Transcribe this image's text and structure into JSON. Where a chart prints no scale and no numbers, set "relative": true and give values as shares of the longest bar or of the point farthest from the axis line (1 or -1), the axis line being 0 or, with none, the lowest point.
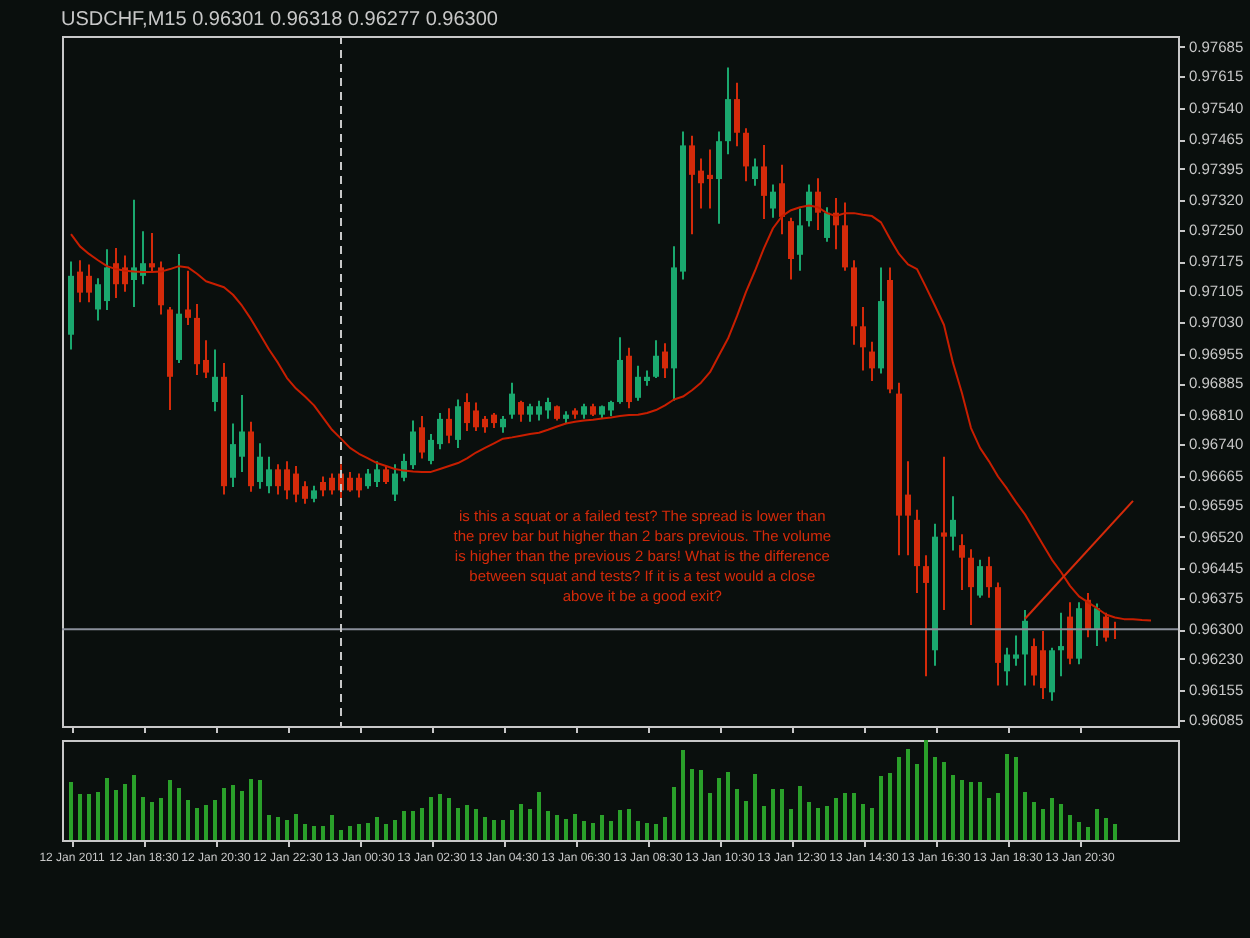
{
  "chart_data": [
    {
      "type": "candlestick",
      "title": "USDCHF,M15 0.96301 0.96318 0.96277 0.96300",
      "x": [
        "2011-01-12T16:30",
        "2011-01-12T16:45",
        "2011-01-12T17:00",
        "2011-01-12T17:15",
        "2011-01-12T17:30",
        "2011-01-12T17:45",
        "2011-01-12T18:00",
        "2011-01-12T18:15",
        "2011-01-12T18:30",
        "2011-01-12T18:45",
        "2011-01-12T19:00",
        "2011-01-12T19:15",
        "2011-01-12T19:30",
        "2011-01-12T19:45",
        "2011-01-12T20:00",
        "2011-01-12T20:15",
        "2011-01-12T20:30",
        "2011-01-12T20:45",
        "2011-01-12T21:00",
        "2011-01-12T21:15",
        "2011-01-12T21:30",
        "2011-01-12T21:45",
        "2011-01-12T22:00",
        "2011-01-12T22:15",
        "2011-01-12T22:30",
        "2011-01-12T22:45",
        "2011-01-12T23:00",
        "2011-01-12T23:15",
        "2011-01-12T23:30",
        "2011-01-12T23:45",
        "2011-01-13T00:00",
        "2011-01-13T00:15",
        "2011-01-13T00:30",
        "2011-01-13T00:45",
        "2011-01-13T01:00",
        "2011-01-13T01:15",
        "2011-01-13T01:30",
        "2011-01-13T01:45",
        "2011-01-13T02:00",
        "2011-01-13T02:15",
        "2011-01-13T02:30",
        "2011-01-13T02:45",
        "2011-01-13T03:00",
        "2011-01-13T03:15",
        "2011-01-13T03:30",
        "2011-01-13T03:45",
        "2011-01-13T04:00",
        "2011-01-13T04:15",
        "2011-01-13T04:30",
        "2011-01-13T04:45",
        "2011-01-13T05:00",
        "2011-01-13T05:15",
        "2011-01-13T05:30",
        "2011-01-13T05:45",
        "2011-01-13T06:00",
        "2011-01-13T06:15",
        "2011-01-13T06:30",
        "2011-01-13T06:45",
        "2011-01-13T07:00",
        "2011-01-13T07:15",
        "2011-01-13T07:30",
        "2011-01-13T07:45",
        "2011-01-13T08:00",
        "2011-01-13T08:15",
        "2011-01-13T08:30",
        "2011-01-13T08:45",
        "2011-01-13T09:00",
        "2011-01-13T09:15",
        "2011-01-13T09:30",
        "2011-01-13T09:45",
        "2011-01-13T10:00",
        "2011-01-13T10:15",
        "2011-01-13T10:30",
        "2011-01-13T10:45",
        "2011-01-13T11:00",
        "2011-01-13T11:15",
        "2011-01-13T11:30",
        "2011-01-13T11:45",
        "2011-01-13T12:00",
        "2011-01-13T12:15",
        "2011-01-13T12:30",
        "2011-01-13T12:45",
        "2011-01-13T13:00",
        "2011-01-13T13:15",
        "2011-01-13T13:30",
        "2011-01-13T13:45",
        "2011-01-13T14:00",
        "2011-01-13T14:15",
        "2011-01-13T14:30",
        "2011-01-13T14:45",
        "2011-01-13T15:00",
        "2011-01-13T15:15",
        "2011-01-13T15:30",
        "2011-01-13T15:45",
        "2011-01-13T16:00",
        "2011-01-13T16:15",
        "2011-01-13T16:30",
        "2011-01-13T16:45",
        "2011-01-13T17:00",
        "2011-01-13T17:15",
        "2011-01-13T17:30",
        "2011-01-13T17:45",
        "2011-01-13T18:00",
        "2011-01-13T18:15",
        "2011-01-13T18:30",
        "2011-01-13T18:45",
        "2011-01-13T19:00",
        "2011-01-13T19:15",
        "2011-01-13T19:30",
        "2011-01-13T19:45",
        "2011-01-13T20:00",
        "2011-01-13T20:15",
        "2011-01-13T20:30",
        "2011-01-13T20:45",
        "2011-01-13T21:00",
        "2011-01-13T21:15",
        "2011-01-13T21:30",
        "2011-01-13T21:45",
        "2011-01-13T22:00",
        "2011-01-13T22:15",
        "2011-01-13T22:30"
      ],
      "ohlc": [
        [
          0.97,
          0.97174,
          0.96965,
          0.9714
        ],
        [
          0.9715,
          0.97177,
          0.97077,
          0.971
        ],
        [
          0.9714,
          0.97167,
          0.97077,
          0.971
        ],
        [
          0.9706,
          0.97134,
          0.97034,
          0.9712
        ],
        [
          0.9708,
          0.97203,
          0.97059,
          0.9716
        ],
        [
          0.9717,
          0.97206,
          0.97087,
          0.9712
        ],
        [
          0.9716,
          0.97188,
          0.97102,
          0.9712
        ],
        [
          0.9713,
          0.97321,
          0.97066,
          0.9716
        ],
        [
          0.9714,
          0.97246,
          0.9712,
          0.9717
        ],
        [
          0.9717,
          0.97242,
          0.97149,
          0.9716
        ],
        [
          0.9716,
          0.97174,
          0.97048,
          0.9707
        ],
        [
          0.9706,
          0.97066,
          0.96821,
          0.969
        ],
        [
          0.9694,
          0.97192,
          0.96933,
          0.9705
        ],
        [
          0.9706,
          0.97152,
          0.97023,
          0.9704
        ],
        [
          0.9704,
          0.97073,
          0.96904,
          0.9693
        ],
        [
          0.9694,
          0.96987,
          0.96897,
          0.9691
        ],
        [
          0.9684,
          0.96965,
          0.96818,
          0.969
        ],
        [
          0.969,
          0.96933,
          0.9662,
          0.9664
        ],
        [
          0.9666,
          0.96789,
          0.96638,
          0.9674
        ],
        [
          0.9671,
          0.96857,
          0.96674,
          0.9677
        ],
        [
          0.9677,
          0.96793,
          0.96627,
          0.9664
        ],
        [
          0.9665,
          0.96742,
          0.96634,
          0.9671
        ],
        [
          0.9664,
          0.9671,
          0.96623,
          0.9668
        ],
        [
          0.9668,
          0.96692,
          0.9662,
          0.9664
        ],
        [
          0.9668,
          0.96699,
          0.96609,
          0.9663
        ],
        [
          0.9667,
          0.96688,
          0.96602,
          0.9662
        ],
        [
          0.9664,
          0.96652,
          0.96598,
          0.9661
        ],
        [
          0.9661,
          0.96641,
          0.96602,
          0.9663
        ],
        [
          0.9665,
          0.96663,
          0.96616,
          0.9663
        ],
        [
          0.9666,
          0.9667,
          0.9662,
          0.9663
        ],
        [
          0.9667,
          0.96692,
          0.96609,
          0.9663
        ],
        [
          0.9666,
          0.96674,
          0.96627,
          0.9663
        ],
        [
          0.9666,
          0.9667,
          0.96613,
          0.9663
        ],
        [
          0.9664,
          0.96681,
          0.96634,
          0.9667
        ],
        [
          0.9665,
          0.96699,
          0.96638,
          0.9668
        ],
        [
          0.9668,
          0.96688,
          0.96645,
          0.9665
        ],
        [
          0.9662,
          0.96692,
          0.96605,
          0.9667
        ],
        [
          0.9666,
          0.96717,
          0.96652,
          0.967
        ],
        [
          0.9669,
          0.96796,
          0.96681,
          0.9677
        ],
        [
          0.9678,
          0.96807,
          0.96706,
          0.9672
        ],
        [
          0.967,
          0.96764,
          0.96692,
          0.9675
        ],
        [
          0.9674,
          0.96814,
          0.96728,
          0.968
        ],
        [
          0.968,
          0.96825,
          0.96742,
          0.9676
        ],
        [
          0.9675,
          0.96846,
          0.96731,
          0.9683
        ],
        [
          0.9684,
          0.96861,
          0.96771,
          0.9679
        ],
        [
          0.9682,
          0.96839,
          0.96771,
          0.9678
        ],
        [
          0.968,
          0.96807,
          0.96767,
          0.9678
        ],
        [
          0.9681,
          0.96814,
          0.96778,
          0.9679
        ],
        [
          0.9678,
          0.96807,
          0.96767,
          0.968
        ],
        [
          0.9681,
          0.96886,
          0.968,
          0.9686
        ],
        [
          0.9684,
          0.96843,
          0.96793,
          0.9681
        ],
        [
          0.9681,
          0.96836,
          0.96793,
          0.9683
        ],
        [
          0.9681,
          0.96843,
          0.96796,
          0.9683
        ],
        [
          0.9682,
          0.9685,
          0.968,
          0.9684
        ],
        [
          0.9683,
          0.96832,
          0.96796,
          0.968
        ],
        [
          0.968,
          0.96818,
          0.96789,
          0.9681
        ],
        [
          0.9682,
          0.96825,
          0.968,
          0.9681
        ],
        [
          0.9681,
          0.96836,
          0.968,
          0.9683
        ],
        [
          0.9683,
          0.96836,
          0.96807,
          0.9681
        ],
        [
          0.9681,
          0.96832,
          0.968,
          0.9683
        ],
        [
          0.9682,
          0.96843,
          0.96807,
          0.9684
        ],
        [
          0.9684,
          0.96994,
          0.96836,
          0.9694
        ],
        [
          0.9695,
          0.96969,
          0.96825,
          0.9684
        ],
        [
          0.9685,
          0.96926,
          0.96843,
          0.969
        ],
        [
          0.9689,
          0.96915,
          0.96879,
          0.969
        ],
        [
          0.969,
          0.96987,
          0.96897,
          0.9695
        ],
        [
          0.9696,
          0.9698,
          0.96897,
          0.9692
        ],
        [
          0.9692,
          0.9721,
          0.96843,
          0.9716
        ],
        [
          0.9715,
          0.97483,
          0.97131,
          0.9745
        ],
        [
          0.9745,
          0.97473,
          0.97239,
          0.9738
        ],
        [
          0.9739,
          0.97419,
          0.973,
          0.9736
        ],
        [
          0.9738,
          0.9744,
          0.973,
          0.9737
        ],
        [
          0.9737,
          0.97483,
          0.97264,
          0.9746
        ],
        [
          0.9746,
          0.97635,
          0.97429,
          0.9756
        ],
        [
          0.9756,
          0.97599,
          0.97448,
          0.9748
        ],
        [
          0.9748,
          0.97491,
          0.97365,
          0.974
        ],
        [
          0.9737,
          0.97419,
          0.97354,
          0.974
        ],
        [
          0.974,
          0.97451,
          0.97275,
          0.9733
        ],
        [
          0.973,
          0.97357,
          0.97278,
          0.9734
        ],
        [
          0.9736,
          0.97404,
          0.97239,
          0.9728
        ],
        [
          0.9727,
          0.97278,
          0.97131,
          0.9718
        ],
        [
          0.9719,
          0.973,
          0.97152,
          0.9726
        ],
        [
          0.9727,
          0.97357,
          0.97257,
          0.9734
        ],
        [
          0.9734,
          0.97372,
          0.97249,
          0.9729
        ],
        [
          0.9723,
          0.97303,
          0.97221,
          0.9729
        ],
        [
          0.9729,
          0.97325,
          0.97203,
          0.9726
        ],
        [
          0.9726,
          0.97314,
          0.97152,
          0.9716
        ],
        [
          0.9716,
          0.97177,
          0.96976,
          0.9702
        ],
        [
          0.9702,
          0.97066,
          0.96915,
          0.9697
        ],
        [
          0.9696,
          0.96983,
          0.9689,
          0.9692
        ],
        [
          0.9692,
          0.9716,
          0.96908,
          0.9708
        ],
        [
          0.9713,
          0.9716,
          0.96861,
          0.9687
        ],
        [
          0.9686,
          0.96886,
          0.96476,
          0.9657
        ],
        [
          0.9662,
          0.96699,
          0.96476,
          0.9657
        ],
        [
          0.9656,
          0.96584,
          0.96386,
          0.9645
        ],
        [
          0.9645,
          0.96476,
          0.96188,
          0.9641
        ],
        [
          0.9625,
          0.96551,
          0.96213,
          0.9652
        ],
        [
          0.9653,
          0.9671,
          0.96346,
          0.9652
        ],
        [
          0.9652,
          0.96616,
          0.96487,
          0.9656
        ],
        [
          0.965,
          0.96526,
          0.96393,
          0.9647
        ],
        [
          0.9647,
          0.9649,
          0.9631,
          0.964
        ],
        [
          0.9638,
          0.96465,
          0.96375,
          0.9645
        ],
        [
          0.9645,
          0.96472,
          0.96375,
          0.964
        ],
        [
          0.964,
          0.96411,
          0.96166,
          0.9622
        ],
        [
          0.962,
          0.96256,
          0.96166,
          0.9624
        ],
        [
          0.9623,
          0.96285,
          0.96213,
          0.9624
        ],
        [
          0.9624,
          0.96346,
          0.96166,
          0.9632
        ],
        [
          0.9626,
          0.96278,
          0.96166,
          0.9619
        ],
        [
          0.9625,
          0.96296,
          0.96134,
          0.9616
        ],
        [
          0.9615,
          0.96256,
          0.9613,
          0.9625
        ],
        [
          0.9625,
          0.96339,
          0.96188,
          0.9626
        ],
        [
          0.9633,
          0.96364,
          0.96217,
          0.9623
        ],
        [
          0.9623,
          0.96364,
          0.96217,
          0.9635
        ],
        [
          0.9637,
          0.96386,
          0.96281,
          0.963
        ],
        [
          0.963,
          0.96361,
          0.9626,
          0.9635
        ],
        [
          0.9633,
          0.96339,
          0.96271,
          0.9628
        ],
        [
          0.96301,
          0.96318,
          0.96277,
          0.963
        ],
        null,
        null,
        null,
        null
      ],
      "colors": [
        "#1aa86e",
        "#d42a0a",
        "#d42a0a",
        "#1aa86e",
        "#1aa86e",
        "#d42a0a",
        "#d42a0a",
        "#1aa86e",
        "#1aa86e",
        "#d42a0a",
        "#d42a0a",
        "#d42a0a",
        "#1aa86e",
        "#d42a0a",
        "#d42a0a",
        "#d42a0a",
        "#1aa86e",
        "#d42a0a",
        "#1aa86e",
        "#1aa86e",
        "#d42a0a",
        "#1aa86e",
        "#1aa86e",
        "#d42a0a",
        "#d42a0a",
        "#d42a0a",
        "#d42a0a",
        "#1aa86e",
        "#d42a0a",
        "#d42a0a",
        "#d42a0a",
        "#d42a0a",
        "#d42a0a",
        "#1aa86e",
        "#1aa86e",
        "#d42a0a",
        "#1aa86e",
        "#1aa86e",
        "#1aa86e",
        "#d42a0a",
        "#1aa86e",
        "#1aa86e",
        "#d42a0a",
        "#1aa86e",
        "#d42a0a",
        "#d42a0a",
        "#d42a0a",
        "#d42a0a",
        "#1aa86e",
        "#1aa86e",
        "#d42a0a",
        "#1aa86e",
        "#1aa86e",
        "#1aa86e",
        "#d42a0a",
        "#1aa86e",
        "#d42a0a",
        "#1aa86e",
        "#d42a0a",
        "#1aa86e",
        "#1aa86e",
        "#1aa86e",
        "#d42a0a",
        "#1aa86e",
        "#1aa86e",
        "#1aa86e",
        "#d42a0a",
        "#1aa86e",
        "#1aa86e",
        "#d42a0a",
        "#d42a0a",
        "#d42a0a",
        "#1aa86e",
        "#1aa86e",
        "#d42a0a",
        "#d42a0a",
        "#1aa86e",
        "#d42a0a",
        "#1aa86e",
        "#d42a0a",
        "#d42a0a",
        "#1aa86e",
        "#1aa86e",
        "#d42a0a",
        "#1aa86e",
        "#d42a0a",
        "#d42a0a",
        "#d42a0a",
        "#d42a0a",
        "#d42a0a",
        "#1aa86e",
        "#d42a0a",
        "#d42a0a",
        "#d42a0a",
        "#d42a0a",
        "#d42a0a",
        "#1aa86e",
        "#d42a0a",
        "#1aa86e",
        "#d42a0a",
        "#d42a0a",
        "#1aa86e",
        "#d42a0a",
        "#d42a0a",
        "#1aa86e",
        "#1aa86e",
        "#1aa86e",
        "#d42a0a",
        "#d42a0a",
        "#1aa86e",
        "#1aa86e",
        "#d42a0a",
        "#1aa86e",
        "#d42a0a",
        "#1aa86e",
        "#d42a0a",
        "#d42a0a",
        null,
        null,
        null,
        null
      ],
      "series": [
        {
          "type": "line",
          "color": "#c81e00",
          "values": [
            0.97239,
            0.9721,
            0.97192,
            0.97177,
            0.97163,
            0.97156,
            0.97152,
            0.9715,
            0.97149,
            0.97149,
            0.9715,
            0.97156,
            0.97163,
            0.9716,
            0.97145,
            0.97127,
            0.9712,
            0.97113,
            0.97095,
            0.97069,
            0.97037,
            0.97001,
            0.96965,
            0.96933,
            0.96897,
            0.96872,
            0.96853,
            0.96832,
            0.96803,
            0.96774,
            0.96753,
            0.96731,
            0.96717,
            0.96706,
            0.96695,
            0.96688,
            0.96681,
            0.96677,
            0.96675,
            0.96674,
            0.96674,
            0.96681,
            0.96688,
            0.96695,
            0.96706,
            0.9672,
            0.96731,
            0.96742,
            0.96753,
            0.96756,
            0.9676,
            0.96764,
            0.96767,
            0.96774,
            0.96782,
            0.96789,
            0.96793,
            0.96796,
            0.96798,
            0.96801,
            0.96803,
            0.96807,
            0.96809,
            0.9681,
            0.96814,
            0.96821,
            0.96832,
            0.96846,
            0.96853,
            0.96868,
            0.96886,
            0.96911,
            0.96951,
            0.96991,
            0.97044,
            0.97102,
            0.97152,
            0.97206,
            0.97253,
            0.97282,
            0.97296,
            0.97303,
            0.97307,
            0.97303,
            0.97289,
            0.97282,
            0.97289,
            0.97289,
            0.97285,
            0.97282,
            0.97267,
            0.97228,
            0.97192,
            0.97167,
            0.97156,
            0.97113,
            0.97069,
            0.97023,
            0.96933,
            0.96861,
            0.96778,
            0.96731,
            0.96699,
            0.96663,
            0.96634,
            0.96602,
            0.96573,
            0.96537,
            0.96501,
            0.96465,
            0.96436,
            0.96403,
            0.96378,
            0.96364,
            0.9635,
            0.96335,
            0.96328,
            0.96324,
            0.96324,
            0.96322,
            0.96321
          ]
        },
        {
          "type": "line",
          "color": "#d42a0a",
          "x": [
            "2011-01-13T19:00",
            "2011-01-13T22:00"
          ],
          "values": [
            0.96325,
            0.96605
          ]
        }
      ],
      "xlim": [
        "2011-01-12T16:15",
        "2011-01-13T23:15"
      ],
      "xticks": [
        {
          "value": "2011-01-12T16:30",
          "label": null
        },
        {
          "value": "2011-01-12T18:30",
          "label": null
        },
        {
          "value": "2011-01-12T20:30",
          "label": null
        },
        {
          "value": "2011-01-12T22:30",
          "label": null
        },
        {
          "value": "2011-01-13T00:30",
          "label": null
        },
        {
          "value": "2011-01-13T02:30",
          "label": null
        },
        {
          "value": "2011-01-13T04:30",
          "label": null
        },
        {
          "value": "2011-01-13T06:30",
          "label": null
        },
        {
          "value": "2011-01-13T08:30",
          "label": null
        },
        {
          "value": "2011-01-13T10:30",
          "label": null
        },
        {
          "value": "2011-01-13T12:30",
          "label": null
        },
        {
          "value": "2011-01-13T14:30",
          "label": null
        },
        {
          "value": "2011-01-13T16:30",
          "label": null
        },
        {
          "value": "2011-01-13T18:30",
          "label": null
        },
        {
          "value": "2011-01-13T20:30",
          "label": null
        }
      ],
      "ylim": [
        0.9607,
        0.9771
      ],
      "yticks": [
        {
          "value": 0.97685,
          "label": "0.97685"
        },
        {
          "value": 0.97615,
          "label": "0.97615"
        },
        {
          "value": 0.9754,
          "label": "0.97540"
        },
        {
          "value": 0.97465,
          "label": "0.97465"
        },
        {
          "value": 0.97395,
          "label": "0.97395"
        },
        {
          "value": 0.9732,
          "label": "0.97320"
        },
        {
          "value": 0.9725,
          "label": "0.97250"
        },
        {
          "value": 0.97175,
          "label": "0.97175"
        },
        {
          "value": 0.97105,
          "label": "0.97105"
        },
        {
          "value": 0.9703,
          "label": "0.97030"
        },
        {
          "value": 0.96955,
          "label": "0.96955"
        },
        {
          "value": 0.96885,
          "label": "0.96885"
        },
        {
          "value": 0.9681,
          "label": "0.96810"
        },
        {
          "value": 0.9674,
          "label": "0.96740"
        },
        {
          "value": 0.96665,
          "label": "0.96665"
        },
        {
          "value": 0.96595,
          "label": "0.96595"
        },
        {
          "value": 0.9652,
          "label": "0.96520"
        },
        {
          "value": 0.96445,
          "label": "0.96445"
        },
        {
          "value": 0.96375,
          "label": "0.96375"
        },
        {
          "value": 0.963,
          "label": "0.96300"
        },
        {
          "value": 0.9623,
          "label": "0.96230"
        },
        {
          "value": 0.96155,
          "label": "0.96155"
        },
        {
          "value": 0.96085,
          "label": "0.96085"
        }
      ],
      "ref_lines": [
        {
          "axis": "y",
          "value": 0.963,
          "color": "#8a8f9a"
        },
        {
          "axis": "x",
          "value": "2011-01-13T00:00",
          "color": "#c8c8c8",
          "line_style": "dashed"
        }
      ],
      "annotations": [
        "is this a squat or a failed test? The spread is lower than the prev bar but higher than 2 bars previous. The volume is higher than the previous 2 bars! What is the difference between squat and tests? If it is a test would a close above it be a good exit?"
      ],
      "tick_labels": "y"
    },
    {
      "type": "bar",
      "relative": true,
      "color": "#2aa02a",
      "x": [
        "2011-01-12T16:30",
        "2011-01-12T16:45",
        "2011-01-12T17:00",
        "2011-01-12T17:15",
        "2011-01-12T17:30",
        "2011-01-12T17:45",
        "2011-01-12T18:00",
        "2011-01-12T18:15",
        "2011-01-12T18:30",
        "2011-01-12T18:45",
        "2011-01-12T19:00",
        "2011-01-12T19:15",
        "2011-01-12T19:30",
        "2011-01-12T19:45",
        "2011-01-12T20:00",
        "2011-01-12T20:15",
        "2011-01-12T20:30",
        "2011-01-12T20:45",
        "2011-01-12T21:00",
        "2011-01-12T21:15",
        "2011-01-12T21:30",
        "2011-01-12T21:45",
        "2011-01-12T22:00",
        "2011-01-12T22:15",
        "2011-01-12T22:30",
        "2011-01-12T22:45",
        "2011-01-12T23:00",
        "2011-01-12T23:15",
        "2011-01-12T23:30",
        "2011-01-12T23:45",
        "2011-01-13T00:00",
        "2011-01-13T00:15",
        "2011-01-13T00:30",
        "2011-01-13T00:45",
        "2011-01-13T01:00",
        "2011-01-13T01:15",
        "2011-01-13T01:30",
        "2011-01-13T01:45",
        "2011-01-13T02:00",
        "2011-01-13T02:15",
        "2011-01-13T02:30",
        "2011-01-13T02:45",
        "2011-01-13T03:00",
        "2011-01-13T03:15",
        "2011-01-13T03:30",
        "2011-01-13T03:45",
        "2011-01-13T04:00",
        "2011-01-13T04:15",
        "2011-01-13T04:30",
        "2011-01-13T04:45",
        "2011-01-13T05:00",
        "2011-01-13T05:15",
        "2011-01-13T05:30",
        "2011-01-13T05:45",
        "2011-01-13T06:00",
        "2011-01-13T06:15",
        "2011-01-13T06:30",
        "2011-01-13T06:45",
        "2011-01-13T07:00",
        "2011-01-13T07:15",
        "2011-01-13T07:30",
        "2011-01-13T07:45",
        "2011-01-13T08:00",
        "2011-01-13T08:15",
        "2011-01-13T08:30",
        "2011-01-13T08:45",
        "2011-01-13T09:00",
        "2011-01-13T09:15",
        "2011-01-13T09:30",
        "2011-01-13T09:45",
        "2011-01-13T10:00",
        "2011-01-13T10:15",
        "2011-01-13T10:30",
        "2011-01-13T10:45",
        "2011-01-13T11:00",
        "2011-01-13T11:15",
        "2011-01-13T11:30",
        "2011-01-13T11:45",
        "2011-01-13T12:00",
        "2011-01-13T12:15",
        "2011-01-13T12:30",
        "2011-01-13T12:45",
        "2011-01-13T13:00",
        "2011-01-13T13:15",
        "2011-01-13T13:30",
        "2011-01-13T13:45",
        "2011-01-13T14:00",
        "2011-01-13T14:15",
        "2011-01-13T14:30",
        "2011-01-13T14:45",
        "2011-01-13T15:00",
        "2011-01-13T15:15",
        "2011-01-13T15:30",
        "2011-01-13T15:45",
        "2011-01-13T16:00",
        "2011-01-13T16:15",
        "2011-01-13T16:30",
        "2011-01-13T16:45",
        "2011-01-13T17:00",
        "2011-01-13T17:15",
        "2011-01-13T17:30",
        "2011-01-13T17:45",
        "2011-01-13T18:00",
        "2011-01-13T18:15",
        "2011-01-13T18:30",
        "2011-01-13T18:45",
        "2011-01-13T19:00",
        "2011-01-13T19:15",
        "2011-01-13T19:30",
        "2011-01-13T19:45",
        "2011-01-13T20:00",
        "2011-01-13T20:15",
        "2011-01-13T20:30",
        "2011-01-13T20:45",
        "2011-01-13T21:00",
        "2011-01-13T21:15",
        "2011-01-13T21:30"
      ],
      "values": [
        0.58,
        0.46,
        0.46,
        0.48,
        0.62,
        0.5,
        0.56,
        0.65,
        0.43,
        0.38,
        0.42,
        0.6,
        0.52,
        0.4,
        0.32,
        0.35,
        0.4,
        0.52,
        0.55,
        0.49,
        0.61,
        0.6,
        0.25,
        0.23,
        0.2,
        0.26,
        0.16,
        0.14,
        0.14,
        0.25,
        0.1,
        0.14,
        0.16,
        0.17,
        0.23,
        0.16,
        0.2,
        0.29,
        0.29,
        0.32,
        0.43,
        0.46,
        0.42,
        0.32,
        0.35,
        0.31,
        0.23,
        0.2,
        0.2,
        0.3,
        0.36,
        0.31,
        0.48,
        0.29,
        0.25,
        0.21,
        0.26,
        0.19,
        0.17,
        0.25,
        0.19,
        0.3,
        0.31,
        0.19,
        0.17,
        0.16,
        0.23,
        0.53,
        0.9,
        0.71,
        0.7,
        0.47,
        0.62,
        0.68,
        0.51,
        0.39,
        0.66,
        0.34,
        0.51,
        0.51,
        0.31,
        0.54,
        0.38,
        0.32,
        0.34,
        0.42,
        0.47,
        0.47,
        0.36,
        0.32,
        0.64,
        0.67,
        0.83,
        0.91,
        0.76,
        1,
        0.83,
        0.78,
        0.65,
        0.6,
        0.58,
        0.58,
        0.42,
        0.47,
        0.86,
        0.83,
        0.48,
        0.38,
        0.31,
        0.42,
        0.36,
        0.25,
        0.18,
        0.13,
        0.31,
        0.22,
        0.16
      ],
      "xlim": [
        "2011-01-12T16:15",
        "2011-01-13T23:15"
      ],
      "xticks": [
        {
          "value": "2011-01-12T16:30",
          "label": "12 Jan 2011"
        },
        {
          "value": "2011-01-12T18:30",
          "label": "12 Jan 18:30"
        },
        {
          "value": "2011-01-12T20:30",
          "label": "12 Jan 20:30"
        },
        {
          "value": "2011-01-12T22:30",
          "label": "12 Jan 22:30"
        },
        {
          "value": "2011-01-13T00:30",
          "label": "13 Jan 00:30"
        },
        {
          "value": "2011-01-13T02:30",
          "label": "13 Jan 02:30"
        },
        {
          "value": "2011-01-13T04:30",
          "label": "13 Jan 04:30"
        },
        {
          "value": "2011-01-13T06:30",
          "label": "13 Jan 06:30"
        },
        {
          "value": "2011-01-13T08:30",
          "label": "13 Jan 08:30"
        },
        {
          "value": "2011-01-13T10:30",
          "label": "13 Jan 10:30"
        },
        {
          "value": "2011-01-13T12:30",
          "label": "13 Jan 12:30"
        },
        {
          "value": "2011-01-13T14:30",
          "label": "13 Jan 14:30"
        },
        {
          "value": "2011-01-13T16:30",
          "label": "13 Jan 16:30"
        },
        {
          "value": "2011-01-13T18:30",
          "label": "13 Jan 18:30"
        },
        {
          "value": "2011-01-13T20:30",
          "label": "13 Jan 20:30"
        }
      ],
      "tick_labels": "x"
    }
  ]
}
